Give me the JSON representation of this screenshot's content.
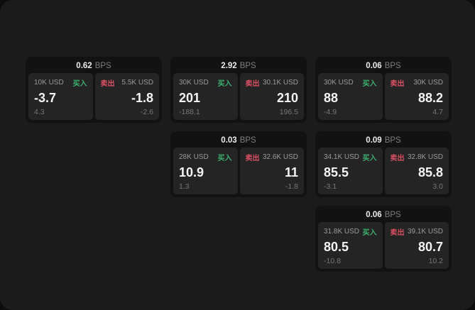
{
  "app": {
    "background": "#0d0d0d",
    "panel_background": "#1b1b1b"
  },
  "labels": {
    "bps_unit": "BPS",
    "buy": "买入",
    "sell": "卖出"
  },
  "colors": {
    "buy_green": "#3daf6f",
    "sell_red": "#da5062",
    "card_background": "#121212",
    "panel_background": "#242424",
    "value_white": "#f5f5f5",
    "muted_gray": "#9a9a9a"
  },
  "cards": [
    {
      "bps": "0.62",
      "buy": {
        "amount": "10K USD",
        "price": "-3.7",
        "delta": "4.3"
      },
      "sell": {
        "amount": "5.5K USD",
        "price": "-1.8",
        "delta": "-2.6"
      }
    },
    {
      "bps": "2.92",
      "buy": {
        "amount": "30K USD",
        "price": "201",
        "delta": "-188.1"
      },
      "sell": {
        "amount": "30.1K USD",
        "price": "210",
        "delta": "196.5"
      }
    },
    {
      "bps": "0.06",
      "buy": {
        "amount": "30K USD",
        "price": "88",
        "delta": "-4.9"
      },
      "sell": {
        "amount": "30K USD",
        "price": "88.2",
        "delta": "4.7"
      }
    },
    {
      "bps": "0.03",
      "buy": {
        "amount": "28K USD",
        "price": "10.9",
        "delta": "1.3"
      },
      "sell": {
        "amount": "32.6K USD",
        "price": "11",
        "delta": "-1.8"
      }
    },
    {
      "bps": "0.09",
      "buy": {
        "amount": "34.1K USD",
        "price": "85.5",
        "delta": "-3.1"
      },
      "sell": {
        "amount": "32.8K USD",
        "price": "85.8",
        "delta": "3.0"
      }
    },
    {
      "bps": "0.06",
      "buy": {
        "amount": "31.8K USD",
        "price": "80.5",
        "delta": "-10.8"
      },
      "sell": {
        "amount": "39.1K USD",
        "price": "80.7",
        "delta": "10.2"
      }
    }
  ]
}
